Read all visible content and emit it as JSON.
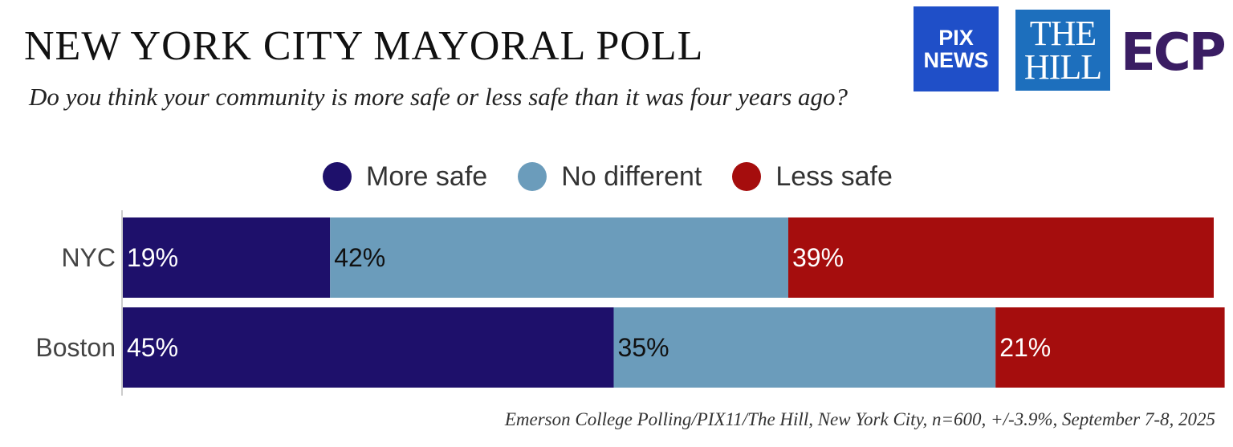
{
  "header": {
    "title": "NEW YORK CITY MAYORAL POLL",
    "subtitle": "Do you think your community is more safe or less safe than it was four years ago?"
  },
  "logos": {
    "pix_line1": "PIX",
    "pix_line2": "NEWS",
    "hill_line1": "THE",
    "hill_line2": "HILL",
    "ecp": "ECP"
  },
  "colors": {
    "more_safe": "#1e106b",
    "no_different": "#6b9cbb",
    "less_safe": "#a50d0d"
  },
  "source": "Emerson College Polling/PIX11/The Hill, New York City, n=600, +/-3.9%, September 7-8, 2025",
  "chart_data": {
    "type": "bar",
    "orientation": "horizontal",
    "stacked": true,
    "categories": [
      "NYC",
      "Boston"
    ],
    "series": [
      {
        "name": "More safe",
        "values": [
          19,
          45
        ],
        "labels": [
          "19%",
          "45%"
        ]
      },
      {
        "name": "No different",
        "values": [
          42,
          35
        ],
        "labels": [
          "42%",
          "35%"
        ]
      },
      {
        "name": "Less safe",
        "values": [
          39,
          21
        ],
        "labels": [
          "39%",
          "21%"
        ]
      }
    ],
    "xlim": [
      0,
      100
    ],
    "legend_position": "top",
    "grid": false
  }
}
